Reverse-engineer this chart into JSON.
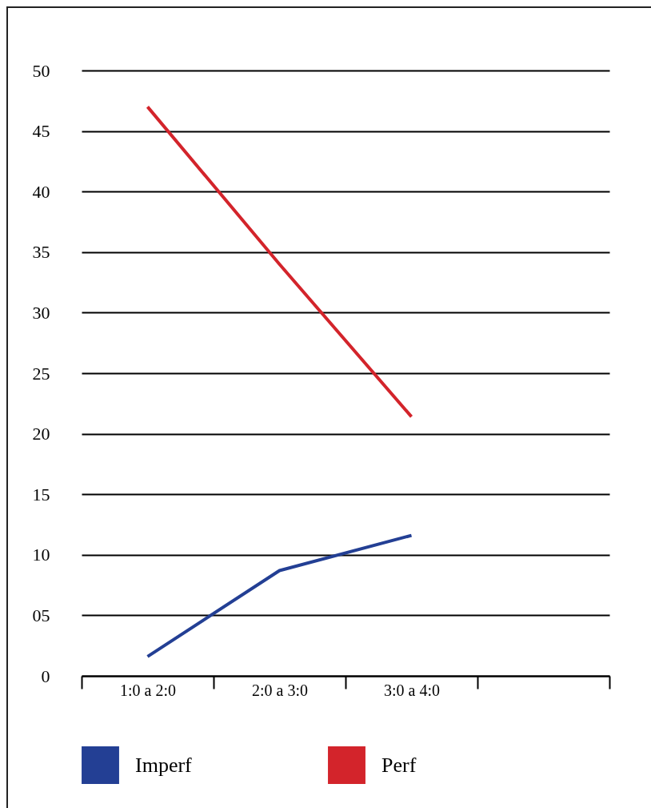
{
  "chart_data": {
    "type": "line",
    "categories": [
      "1:0 a 2:0",
      "2:0 a 3:0",
      "3:0 a 4:0",
      null
    ],
    "series": [
      {
        "name": "Imperf",
        "color": "#233f94",
        "values": [
          1.6,
          8.7,
          11.6,
          null
        ]
      },
      {
        "name": "Perf",
        "color": "#d3242b",
        "values": [
          47,
          34,
          21.4,
          null
        ]
      }
    ],
    "ylim": [
      0,
      50
    ],
    "yticks": [
      0,
      {
        "value": 5,
        "label": "05"
      },
      10,
      15,
      20,
      25,
      30,
      35,
      40,
      45,
      50
    ],
    "grid": "y",
    "legend": "bottom",
    "marker": "none",
    "line_style": "solid"
  }
}
